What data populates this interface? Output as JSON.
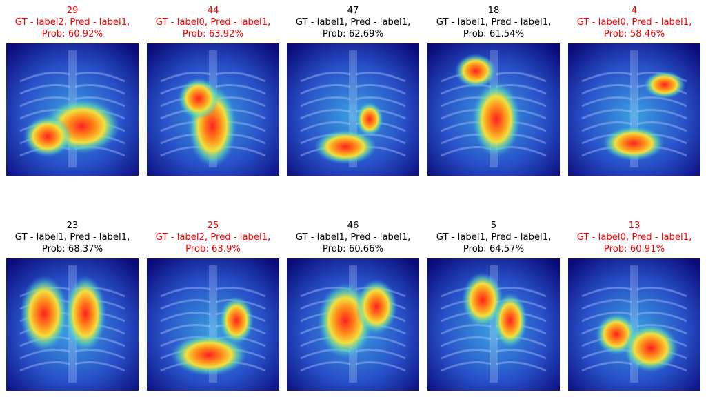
{
  "panels": [
    {
      "id": "29",
      "line1": "GT - label2, Pred - label1,",
      "line2": "Prob: 60.92%",
      "correct": false
    },
    {
      "id": "44",
      "line1": "GT - label0, Pred - label1,",
      "line2": "Prob: 63.92%",
      "correct": false
    },
    {
      "id": "47",
      "line1": "GT - label1, Pred - label1,",
      "line2": "Prob: 62.69%",
      "correct": true
    },
    {
      "id": "18",
      "line1": "GT - label1, Pred - label1,",
      "line2": "Prob: 61.54%",
      "correct": true
    },
    {
      "id": "4",
      "line1": "GT - label0, Pred - label1,",
      "line2": "Prob: 58.46%",
      "correct": false
    },
    {
      "id": "23",
      "line1": "GT - label1, Pred - label1,",
      "line2": "Prob: 68.37%",
      "correct": true
    },
    {
      "id": "25",
      "line1": "GT - label2, Pred - label1,",
      "line2": "Prob: 63.9%",
      "correct": false
    },
    {
      "id": "46",
      "line1": "GT - label1, Pred - label1,",
      "line2": "Prob: 60.66%",
      "correct": true
    },
    {
      "id": "5",
      "line1": "GT - label1, Pred - label1,",
      "line2": "Prob: 64.57%",
      "correct": true
    },
    {
      "id": "13",
      "line1": "GT - label0, Pred - label1,",
      "line2": "Prob: 60.91%",
      "correct": false
    }
  ],
  "colors": {
    "incorrect": "#ff0000",
    "correct": "#000000"
  }
}
